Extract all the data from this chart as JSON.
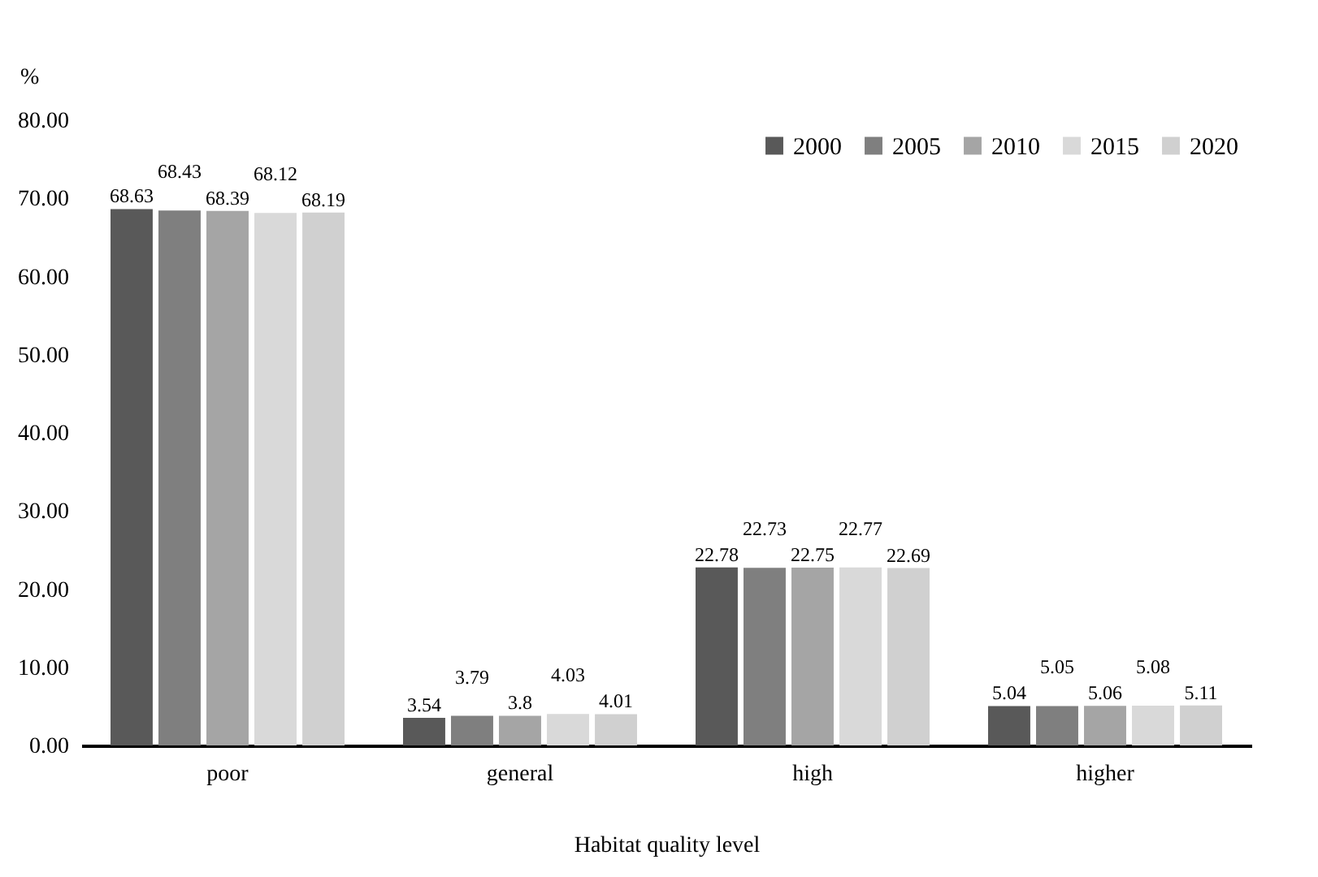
{
  "chart_data": {
    "type": "bar",
    "xlabel": "Habitat quality level",
    "ylabel": "%",
    "categories": [
      "poor",
      "general",
      "high",
      "higher"
    ],
    "series": [
      {
        "name": "2000",
        "color": "#595959",
        "values": [
          68.63,
          3.54,
          22.78,
          5.04
        ]
      },
      {
        "name": "2005",
        "color": "#7f7f7f",
        "values": [
          68.43,
          3.79,
          22.73,
          5.05
        ]
      },
      {
        "name": "2010",
        "color": "#a5a5a5",
        "values": [
          68.39,
          3.8,
          22.75,
          5.06
        ]
      },
      {
        "name": "2015",
        "color": "#d9d9d9",
        "values": [
          68.12,
          4.03,
          22.77,
          5.08
        ]
      },
      {
        "name": "2020",
        "color": "#d0d0d0",
        "values": [
          68.19,
          4.01,
          22.69,
          5.11
        ]
      }
    ],
    "ylim": [
      0,
      80
    ],
    "yticks": [
      {
        "value": 0,
        "label": "0.00"
      },
      {
        "value": 10,
        "label": "10.00"
      },
      {
        "value": 20,
        "label": "20.00"
      },
      {
        "value": 30,
        "label": "30.00"
      },
      {
        "value": 40,
        "label": "40.00"
      },
      {
        "value": 50,
        "label": "50.00"
      },
      {
        "value": 60,
        "label": "60.00"
      },
      {
        "value": 70,
        "label": "70.00"
      },
      {
        "value": 80,
        "label": "80.00"
      }
    ],
    "data_labels": true,
    "legend": "top right",
    "grid": false
  }
}
